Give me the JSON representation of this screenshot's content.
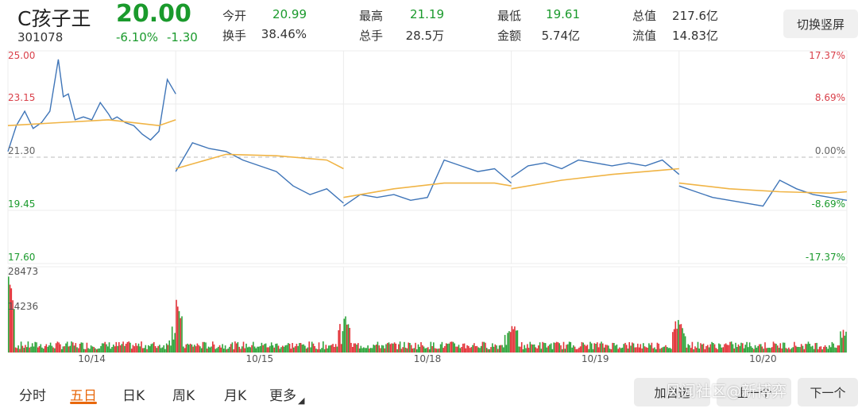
{
  "stock": {
    "name": "C孩子王",
    "price": "20.00",
    "code": "301078",
    "change_pct": "-6.10%",
    "change_val": "-1.30"
  },
  "quote": [
    {
      "label": "今开",
      "value": "20.99",
      "color": "green"
    },
    {
      "label": "最高",
      "value": "21.19",
      "color": "green"
    },
    {
      "label": "最低",
      "value": "19.61",
      "color": "green"
    },
    {
      "label": "总值",
      "value": "217.6亿",
      "color": "dark"
    },
    {
      "label": "换手",
      "value": "38.46%",
      "color": "dark"
    },
    {
      "label": "总手",
      "value": "28.5万",
      "color": "dark"
    },
    {
      "label": "金额",
      "value": "5.74亿",
      "color": "dark"
    },
    {
      "label": "流值",
      "value": "14.83亿",
      "color": "dark"
    }
  ],
  "switch_button": "切换竖屏",
  "chart_data": {
    "type": "line",
    "price_ticks": [
      "25.00",
      "23.15",
      "21.30",
      "19.45",
      "17.60"
    ],
    "pct_ticks": [
      "17.37%",
      "8.69%",
      "0.00%",
      "-8.69%",
      "-17.37%"
    ],
    "volume_ticks": [
      "28473",
      "14236"
    ],
    "x_labels": [
      "10/14",
      "10/15",
      "10/18",
      "10/19",
      "10/20"
    ],
    "ylim": [
      17.6,
      25.0
    ],
    "prev_close": 21.3,
    "volume_max": 28473,
    "grid": true,
    "series": [
      {
        "color": "#3f75b8",
        "x": [
          0,
          0.05,
          0.1,
          0.15,
          0.2,
          0.25,
          0.3,
          0.33,
          0.36,
          0.4,
          0.45,
          0.5,
          0.55,
          0.6,
          0.62,
          0.65,
          0.7,
          0.75,
          0.8,
          0.85,
          0.9,
          0.95,
          1.0,
          1.0,
          1.1,
          1.2,
          1.3,
          1.4,
          1.5,
          1.6,
          1.7,
          1.8,
          1.9,
          2.0,
          2.0,
          2.1,
          2.2,
          2.3,
          2.4,
          2.5,
          2.6,
          2.7,
          2.8,
          2.9,
          3.0,
          3.0,
          3.1,
          3.2,
          3.3,
          3.4,
          3.5,
          3.6,
          3.7,
          3.8,
          3.9,
          4.0,
          4.0,
          4.1,
          4.2,
          4.3,
          4.4,
          4.5,
          4.6,
          4.7,
          4.8,
          4.9,
          5.0
        ],
        "values": [
          21.5,
          22.4,
          22.9,
          22.3,
          22.5,
          22.9,
          24.7,
          23.4,
          23.5,
          22.6,
          22.7,
          22.6,
          23.2,
          22.8,
          22.6,
          22.7,
          22.5,
          22.4,
          22.1,
          21.9,
          22.2,
          24.0,
          23.5,
          20.8,
          21.8,
          21.6,
          21.5,
          21.2,
          21.0,
          20.8,
          20.3,
          20.0,
          20.2,
          19.7,
          19.6,
          20.0,
          19.9,
          20.0,
          19.8,
          19.9,
          21.2,
          21.0,
          20.8,
          20.9,
          20.4,
          20.6,
          21.0,
          21.1,
          20.9,
          21.2,
          21.1,
          21.0,
          21.1,
          21.0,
          21.2,
          20.7,
          20.3,
          20.1,
          19.9,
          19.8,
          19.7,
          19.6,
          20.5,
          20.2,
          20.0,
          19.9,
          19.8
        ]
      },
      {
        "color": "#f0b445",
        "x": [
          0,
          0.3,
          0.6,
          0.9,
          1.0,
          1.0,
          1.3,
          1.6,
          1.9,
          2.0,
          2.0,
          2.3,
          2.6,
          2.9,
          3.0,
          3.0,
          3.3,
          3.6,
          3.9,
          4.0,
          4.0,
          4.3,
          4.6,
          4.9,
          5.0
        ],
        "values": [
          22.4,
          22.5,
          22.6,
          22.4,
          22.6,
          20.9,
          21.4,
          21.35,
          21.2,
          20.9,
          19.9,
          20.2,
          20.4,
          20.4,
          20.3,
          20.2,
          20.5,
          20.7,
          20.85,
          20.9,
          20.4,
          20.2,
          20.1,
          20.05,
          20.1
        ]
      }
    ]
  }
}
